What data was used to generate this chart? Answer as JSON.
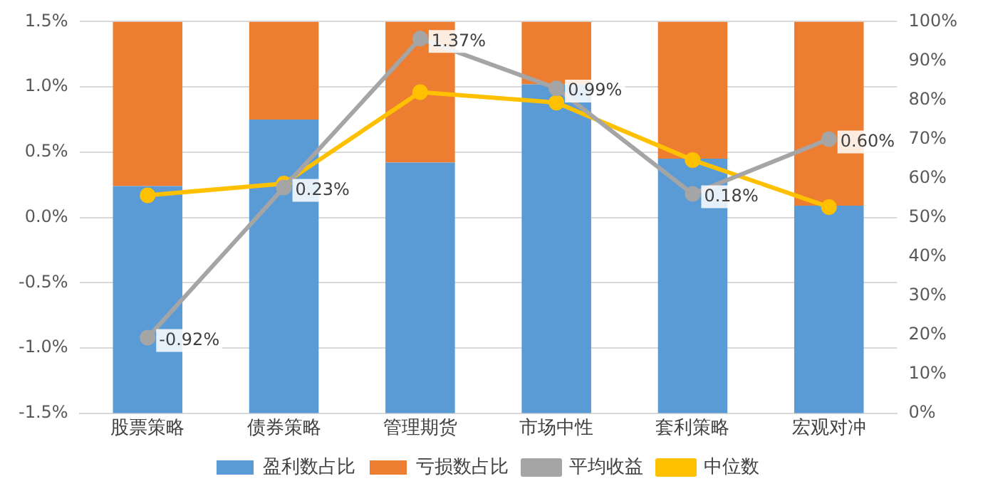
{
  "chart_data": {
    "type": "bar",
    "stacked": true,
    "categories": [
      "股票策略",
      "债券策略",
      "管理期货",
      "市场中性",
      "套利策略",
      "宏观对冲"
    ],
    "series": [
      {
        "name": "盈利数占比",
        "axis": "y2",
        "color": "#5b9bd5",
        "values": [
          58,
          75,
          64,
          84,
          65,
          53
        ]
      },
      {
        "name": "亏损数占比",
        "axis": "y2",
        "color": "#ed7d31",
        "values": [
          42,
          25,
          36,
          16,
          35,
          47
        ]
      },
      {
        "name": "平均收益",
        "type": "line",
        "axis": "y",
        "color": "#a5a5a5",
        "marker": "circle",
        "values": [
          -0.92,
          0.23,
          1.37,
          0.99,
          0.18,
          0.6
        ],
        "value_labels": [
          "-0.92%",
          "0.23%",
          "1.37%",
          "0.99%",
          "0.18%",
          "0.60%"
        ]
      },
      {
        "name": "中位数",
        "type": "line",
        "axis": "y",
        "color": "#ffc000",
        "marker": "circle",
        "values": [
          0.17,
          0.26,
          0.96,
          0.88,
          0.44,
          0.08
        ]
      }
    ],
    "ylim": [
      -1.5,
      1.5
    ],
    "yticks": [
      {
        "value": -1.5,
        "label": "-1.5%"
      },
      {
        "value": -1,
        "label": "-1.0%"
      },
      {
        "value": -0.5,
        "label": "-0.5%"
      },
      {
        "value": 0,
        "label": "0.0%"
      },
      {
        "value": 0.5,
        "label": "0.5%"
      },
      {
        "value": 1,
        "label": "1.0%"
      },
      {
        "value": 1.5,
        "label": "1.5%"
      }
    ],
    "y2lim": [
      0,
      100
    ],
    "y2ticks": [
      {
        "value": 0,
        "label": "0%"
      },
      {
        "value": 10,
        "label": "10%"
      },
      {
        "value": 20,
        "label": "20%"
      },
      {
        "value": 30,
        "label": "30%"
      },
      {
        "value": 40,
        "label": "40%"
      },
      {
        "value": 50,
        "label": "50%"
      },
      {
        "value": 60,
        "label": "60%"
      },
      {
        "value": 70,
        "label": "70%"
      },
      {
        "value": 80,
        "label": "80%"
      },
      {
        "value": 90,
        "label": "90%"
      },
      {
        "value": 100,
        "label": "100%"
      }
    ],
    "grid": "y",
    "legend": "bottom"
  }
}
